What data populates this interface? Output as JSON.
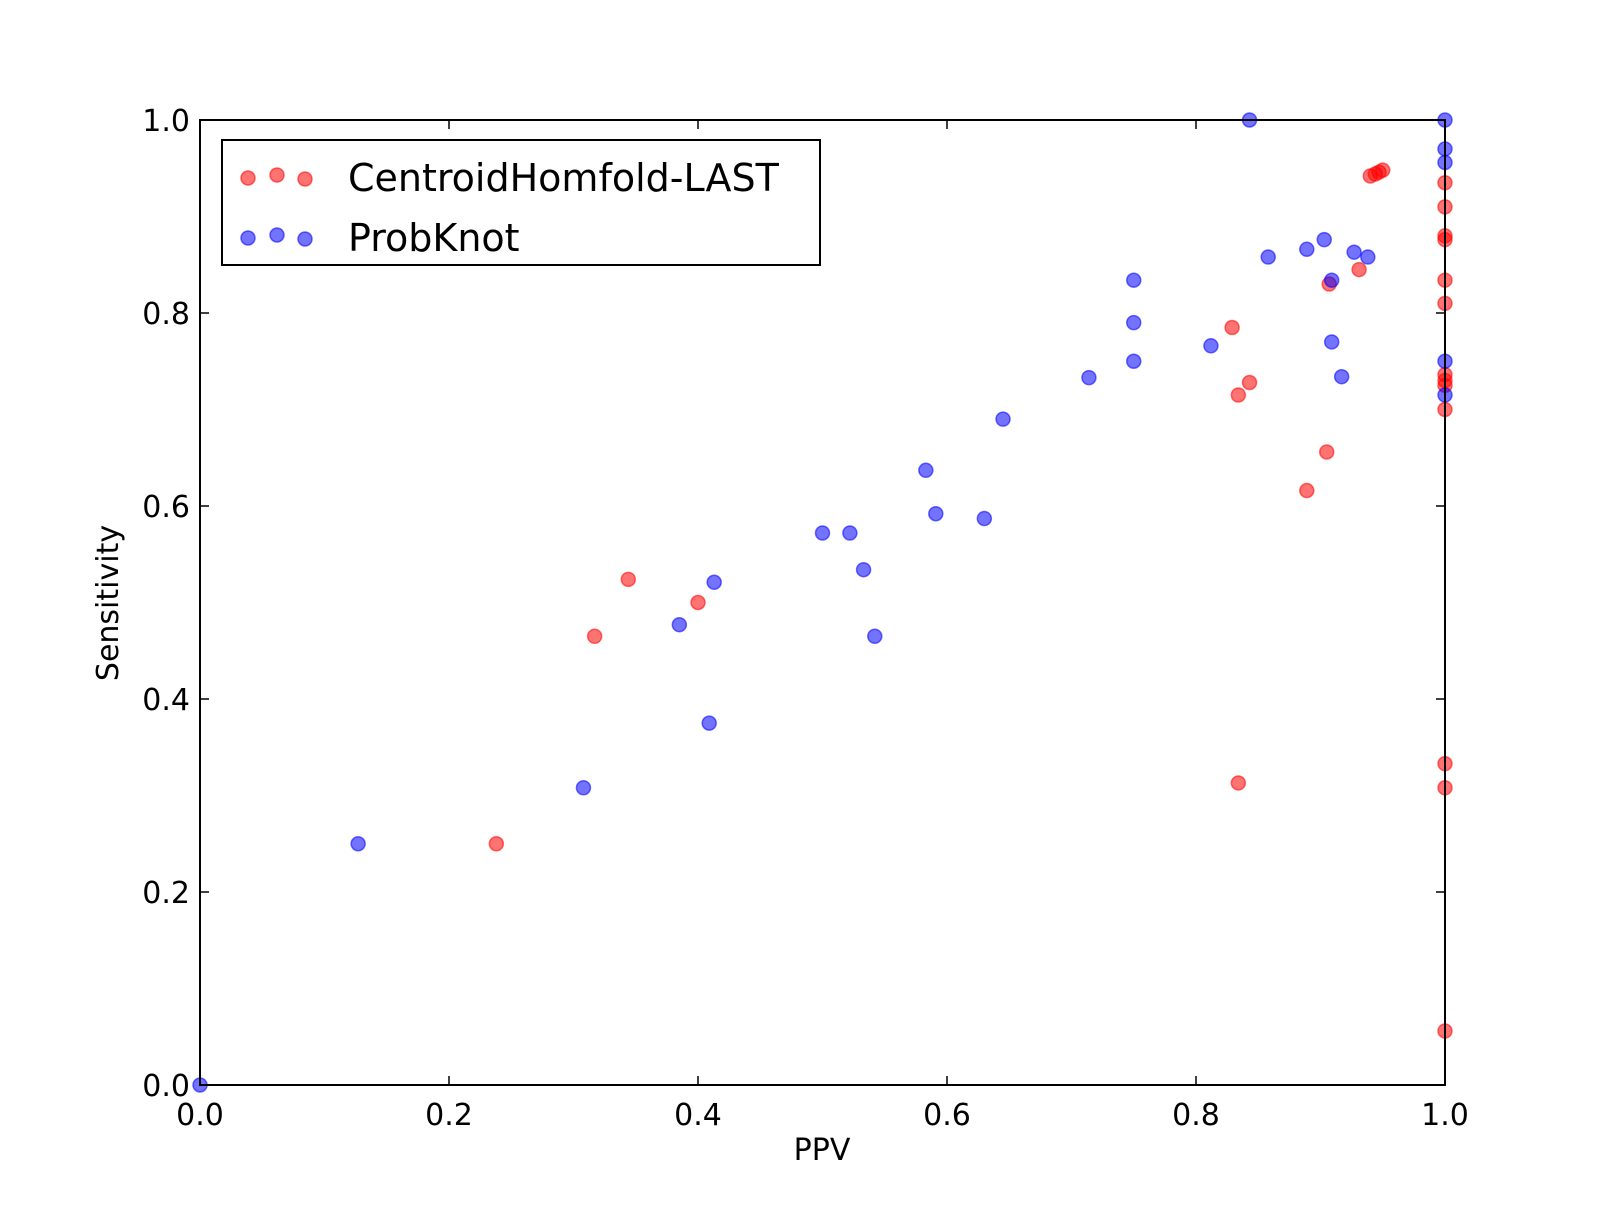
{
  "chart_data": {
    "type": "scatter",
    "title": "",
    "xlabel": "PPV",
    "ylabel": "Sensitivity",
    "xlim": [
      0.0,
      1.0
    ],
    "ylim": [
      0.0,
      1.0
    ],
    "xticks": [
      "0.0",
      "0.2",
      "0.4",
      "0.6",
      "0.8",
      "1.0"
    ],
    "yticks": [
      "0.0",
      "0.2",
      "0.4",
      "0.6",
      "0.8",
      "1.0"
    ],
    "grid": false,
    "legend_position": "upper-left",
    "series": [
      {
        "name": "CentroidHomfold-LAST",
        "color": "#ff0000",
        "points": [
          [
            0.238,
            0.25
          ],
          [
            0.317,
            0.465
          ],
          [
            0.344,
            0.524
          ],
          [
            0.4,
            0.5
          ],
          [
            0.829,
            0.785
          ],
          [
            0.834,
            0.715
          ],
          [
            0.843,
            0.728
          ],
          [
            0.834,
            0.313
          ],
          [
            0.889,
            0.616
          ],
          [
            0.905,
            0.656
          ],
          [
            0.907,
            0.83
          ],
          [
            0.931,
            0.845
          ],
          [
            0.94,
            0.942
          ],
          [
            0.944,
            0.944
          ],
          [
            0.947,
            0.946
          ],
          [
            0.95,
            0.948
          ],
          [
            1.0,
            0.935
          ],
          [
            1.0,
            0.91
          ],
          [
            1.0,
            0.88
          ],
          [
            1.0,
            0.876
          ],
          [
            1.0,
            0.834
          ],
          [
            1.0,
            0.81
          ],
          [
            1.0,
            0.736
          ],
          [
            1.0,
            0.73
          ],
          [
            1.0,
            0.725
          ],
          [
            1.0,
            0.7
          ],
          [
            1.0,
            0.333
          ],
          [
            1.0,
            0.308
          ],
          [
            1.0,
            0.056
          ]
        ]
      },
      {
        "name": "ProbKnot",
        "color": "#0000ff",
        "points": [
          [
            0.0,
            0.0
          ],
          [
            0.127,
            0.25
          ],
          [
            0.308,
            0.308
          ],
          [
            0.385,
            0.477
          ],
          [
            0.409,
            0.375
          ],
          [
            0.413,
            0.521
          ],
          [
            0.5,
            0.572
          ],
          [
            0.522,
            0.572
          ],
          [
            0.533,
            0.534
          ],
          [
            0.542,
            0.465
          ],
          [
            0.583,
            0.637
          ],
          [
            0.591,
            0.592
          ],
          [
            0.63,
            0.587
          ],
          [
            0.645,
            0.69
          ],
          [
            0.714,
            0.733
          ],
          [
            0.75,
            0.834
          ],
          [
            0.75,
            0.79
          ],
          [
            0.75,
            0.75
          ],
          [
            0.812,
            0.766
          ],
          [
            0.843,
            1.0
          ],
          [
            0.858,
            0.858
          ],
          [
            0.889,
            0.866
          ],
          [
            0.903,
            0.876
          ],
          [
            0.909,
            0.834
          ],
          [
            0.909,
            0.77
          ],
          [
            0.917,
            0.734
          ],
          [
            0.927,
            0.863
          ],
          [
            0.938,
            0.858
          ],
          [
            1.0,
            1.0
          ],
          [
            1.0,
            0.97
          ],
          [
            1.0,
            0.956
          ],
          [
            1.0,
            0.75
          ],
          [
            1.0,
            0.715
          ]
        ]
      }
    ]
  }
}
